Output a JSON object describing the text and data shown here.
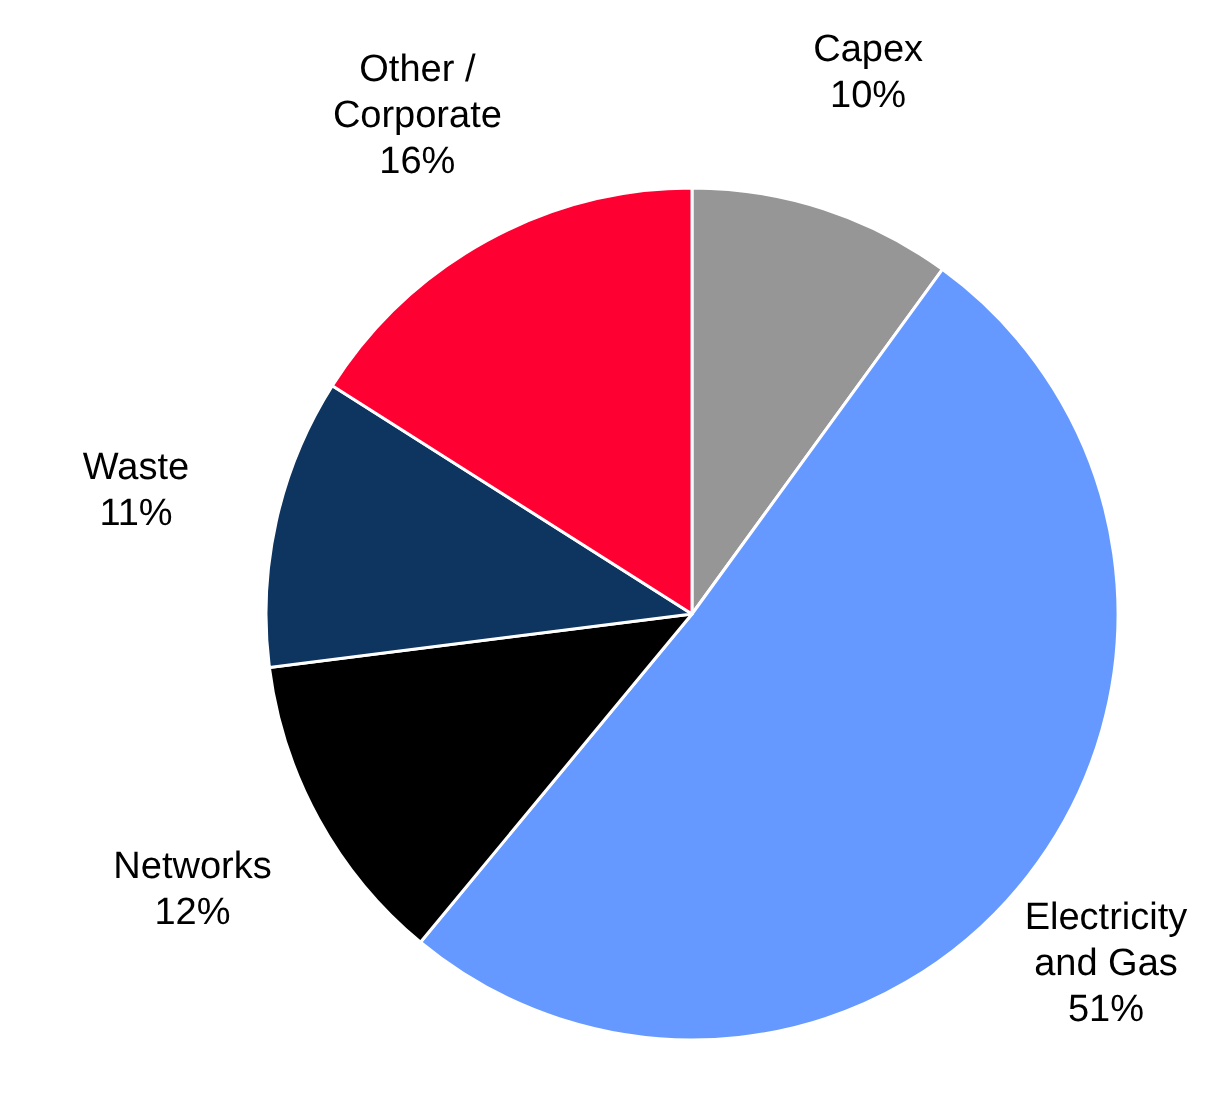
{
  "chart_data": {
    "type": "pie",
    "categories": [
      "Capex",
      "Electricity and Gas",
      "Networks",
      "Waste",
      "Other / Corporate"
    ],
    "values": [
      10,
      51,
      12,
      11,
      16
    ],
    "value_labels": [
      "10%",
      "51%",
      "12%",
      "11%",
      "16%"
    ],
    "colors": [
      "#969696",
      "#6699ff",
      "#000000",
      "#0e3460",
      "#ff0033"
    ]
  }
}
